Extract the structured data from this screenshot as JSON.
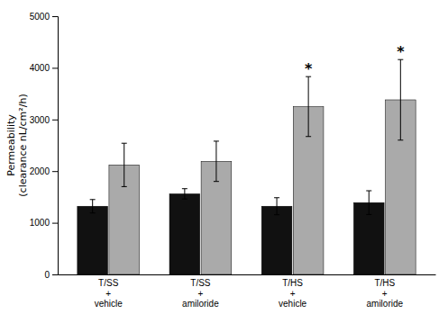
{
  "chart_data": {
    "type": "bar",
    "categories": [
      "T/SS\n+\nvehicle",
      "T/SS\n+\namiloride",
      "T/HS\n+\nvehicle",
      "T/HS\n+\namiloride"
    ],
    "series": [
      {
        "color": "#111111",
        "values": [
          1320,
          1560,
          1320,
          1390
        ],
        "errors": [
          130,
          100,
          165,
          230
        ]
      },
      {
        "color": "#aaaaaa",
        "values": [
          2120,
          2190,
          3250,
          3380
        ],
        "errors": [
          420,
          390,
          580,
          780
        ]
      }
    ],
    "ylabel": "Permeability\n(clearance nL/cm²/h)",
    "ylim": [
      0,
      5000
    ],
    "yticks": [
      0,
      1000,
      2000,
      3000,
      4000,
      5000
    ],
    "grid": false,
    "annotations": [
      {
        "text": "*",
        "series": 1,
        "category": "T/HS\n+\nvehicle"
      },
      {
        "text": "*",
        "series": 1,
        "category": "T/HS\n+\namiloride"
      }
    ]
  }
}
